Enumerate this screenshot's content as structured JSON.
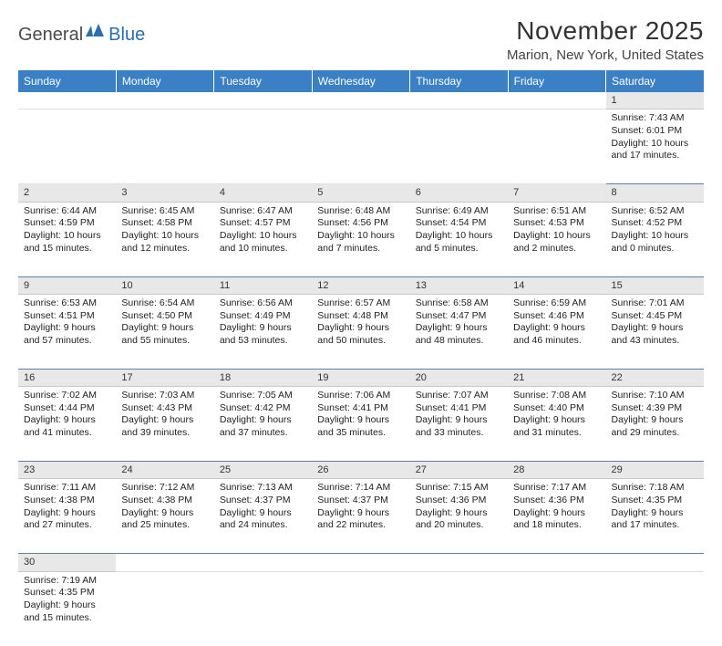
{
  "logo": {
    "text1": "General",
    "text2": "Blue"
  },
  "title": "November 2025",
  "location": "Marion, New York, United States",
  "colors": {
    "header_bg": "#3b7fc4",
    "header_text": "#ffffff",
    "daynum_bg": "#e8e8e8",
    "row_border": "#5b7fa8",
    "logo_accent": "#2a6db0"
  },
  "day_headers": [
    "Sunday",
    "Monday",
    "Tuesday",
    "Wednesday",
    "Thursday",
    "Friday",
    "Saturday"
  ],
  "weeks": [
    [
      null,
      null,
      null,
      null,
      null,
      null,
      {
        "n": "1",
        "sr": "Sunrise: 7:43 AM",
        "ss": "Sunset: 6:01 PM",
        "d1": "Daylight: 10 hours",
        "d2": "and 17 minutes."
      }
    ],
    [
      {
        "n": "2",
        "sr": "Sunrise: 6:44 AM",
        "ss": "Sunset: 4:59 PM",
        "d1": "Daylight: 10 hours",
        "d2": "and 15 minutes."
      },
      {
        "n": "3",
        "sr": "Sunrise: 6:45 AM",
        "ss": "Sunset: 4:58 PM",
        "d1": "Daylight: 10 hours",
        "d2": "and 12 minutes."
      },
      {
        "n": "4",
        "sr": "Sunrise: 6:47 AM",
        "ss": "Sunset: 4:57 PM",
        "d1": "Daylight: 10 hours",
        "d2": "and 10 minutes."
      },
      {
        "n": "5",
        "sr": "Sunrise: 6:48 AM",
        "ss": "Sunset: 4:56 PM",
        "d1": "Daylight: 10 hours",
        "d2": "and 7 minutes."
      },
      {
        "n": "6",
        "sr": "Sunrise: 6:49 AM",
        "ss": "Sunset: 4:54 PM",
        "d1": "Daylight: 10 hours",
        "d2": "and 5 minutes."
      },
      {
        "n": "7",
        "sr": "Sunrise: 6:51 AM",
        "ss": "Sunset: 4:53 PM",
        "d1": "Daylight: 10 hours",
        "d2": "and 2 minutes."
      },
      {
        "n": "8",
        "sr": "Sunrise: 6:52 AM",
        "ss": "Sunset: 4:52 PM",
        "d1": "Daylight: 10 hours",
        "d2": "and 0 minutes."
      }
    ],
    [
      {
        "n": "9",
        "sr": "Sunrise: 6:53 AM",
        "ss": "Sunset: 4:51 PM",
        "d1": "Daylight: 9 hours",
        "d2": "and 57 minutes."
      },
      {
        "n": "10",
        "sr": "Sunrise: 6:54 AM",
        "ss": "Sunset: 4:50 PM",
        "d1": "Daylight: 9 hours",
        "d2": "and 55 minutes."
      },
      {
        "n": "11",
        "sr": "Sunrise: 6:56 AM",
        "ss": "Sunset: 4:49 PM",
        "d1": "Daylight: 9 hours",
        "d2": "and 53 minutes."
      },
      {
        "n": "12",
        "sr": "Sunrise: 6:57 AM",
        "ss": "Sunset: 4:48 PM",
        "d1": "Daylight: 9 hours",
        "d2": "and 50 minutes."
      },
      {
        "n": "13",
        "sr": "Sunrise: 6:58 AM",
        "ss": "Sunset: 4:47 PM",
        "d1": "Daylight: 9 hours",
        "d2": "and 48 minutes."
      },
      {
        "n": "14",
        "sr": "Sunrise: 6:59 AM",
        "ss": "Sunset: 4:46 PM",
        "d1": "Daylight: 9 hours",
        "d2": "and 46 minutes."
      },
      {
        "n": "15",
        "sr": "Sunrise: 7:01 AM",
        "ss": "Sunset: 4:45 PM",
        "d1": "Daylight: 9 hours",
        "d2": "and 43 minutes."
      }
    ],
    [
      {
        "n": "16",
        "sr": "Sunrise: 7:02 AM",
        "ss": "Sunset: 4:44 PM",
        "d1": "Daylight: 9 hours",
        "d2": "and 41 minutes."
      },
      {
        "n": "17",
        "sr": "Sunrise: 7:03 AM",
        "ss": "Sunset: 4:43 PM",
        "d1": "Daylight: 9 hours",
        "d2": "and 39 minutes."
      },
      {
        "n": "18",
        "sr": "Sunrise: 7:05 AM",
        "ss": "Sunset: 4:42 PM",
        "d1": "Daylight: 9 hours",
        "d2": "and 37 minutes."
      },
      {
        "n": "19",
        "sr": "Sunrise: 7:06 AM",
        "ss": "Sunset: 4:41 PM",
        "d1": "Daylight: 9 hours",
        "d2": "and 35 minutes."
      },
      {
        "n": "20",
        "sr": "Sunrise: 7:07 AM",
        "ss": "Sunset: 4:41 PM",
        "d1": "Daylight: 9 hours",
        "d2": "and 33 minutes."
      },
      {
        "n": "21",
        "sr": "Sunrise: 7:08 AM",
        "ss": "Sunset: 4:40 PM",
        "d1": "Daylight: 9 hours",
        "d2": "and 31 minutes."
      },
      {
        "n": "22",
        "sr": "Sunrise: 7:10 AM",
        "ss": "Sunset: 4:39 PM",
        "d1": "Daylight: 9 hours",
        "d2": "and 29 minutes."
      }
    ],
    [
      {
        "n": "23",
        "sr": "Sunrise: 7:11 AM",
        "ss": "Sunset: 4:38 PM",
        "d1": "Daylight: 9 hours",
        "d2": "and 27 minutes."
      },
      {
        "n": "24",
        "sr": "Sunrise: 7:12 AM",
        "ss": "Sunset: 4:38 PM",
        "d1": "Daylight: 9 hours",
        "d2": "and 25 minutes."
      },
      {
        "n": "25",
        "sr": "Sunrise: 7:13 AM",
        "ss": "Sunset: 4:37 PM",
        "d1": "Daylight: 9 hours",
        "d2": "and 24 minutes."
      },
      {
        "n": "26",
        "sr": "Sunrise: 7:14 AM",
        "ss": "Sunset: 4:37 PM",
        "d1": "Daylight: 9 hours",
        "d2": "and 22 minutes."
      },
      {
        "n": "27",
        "sr": "Sunrise: 7:15 AM",
        "ss": "Sunset: 4:36 PM",
        "d1": "Daylight: 9 hours",
        "d2": "and 20 minutes."
      },
      {
        "n": "28",
        "sr": "Sunrise: 7:17 AM",
        "ss": "Sunset: 4:36 PM",
        "d1": "Daylight: 9 hours",
        "d2": "and 18 minutes."
      },
      {
        "n": "29",
        "sr": "Sunrise: 7:18 AM",
        "ss": "Sunset: 4:35 PM",
        "d1": "Daylight: 9 hours",
        "d2": "and 17 minutes."
      }
    ],
    [
      {
        "n": "30",
        "sr": "Sunrise: 7:19 AM",
        "ss": "Sunset: 4:35 PM",
        "d1": "Daylight: 9 hours",
        "d2": "and 15 minutes."
      },
      null,
      null,
      null,
      null,
      null,
      null
    ]
  ]
}
